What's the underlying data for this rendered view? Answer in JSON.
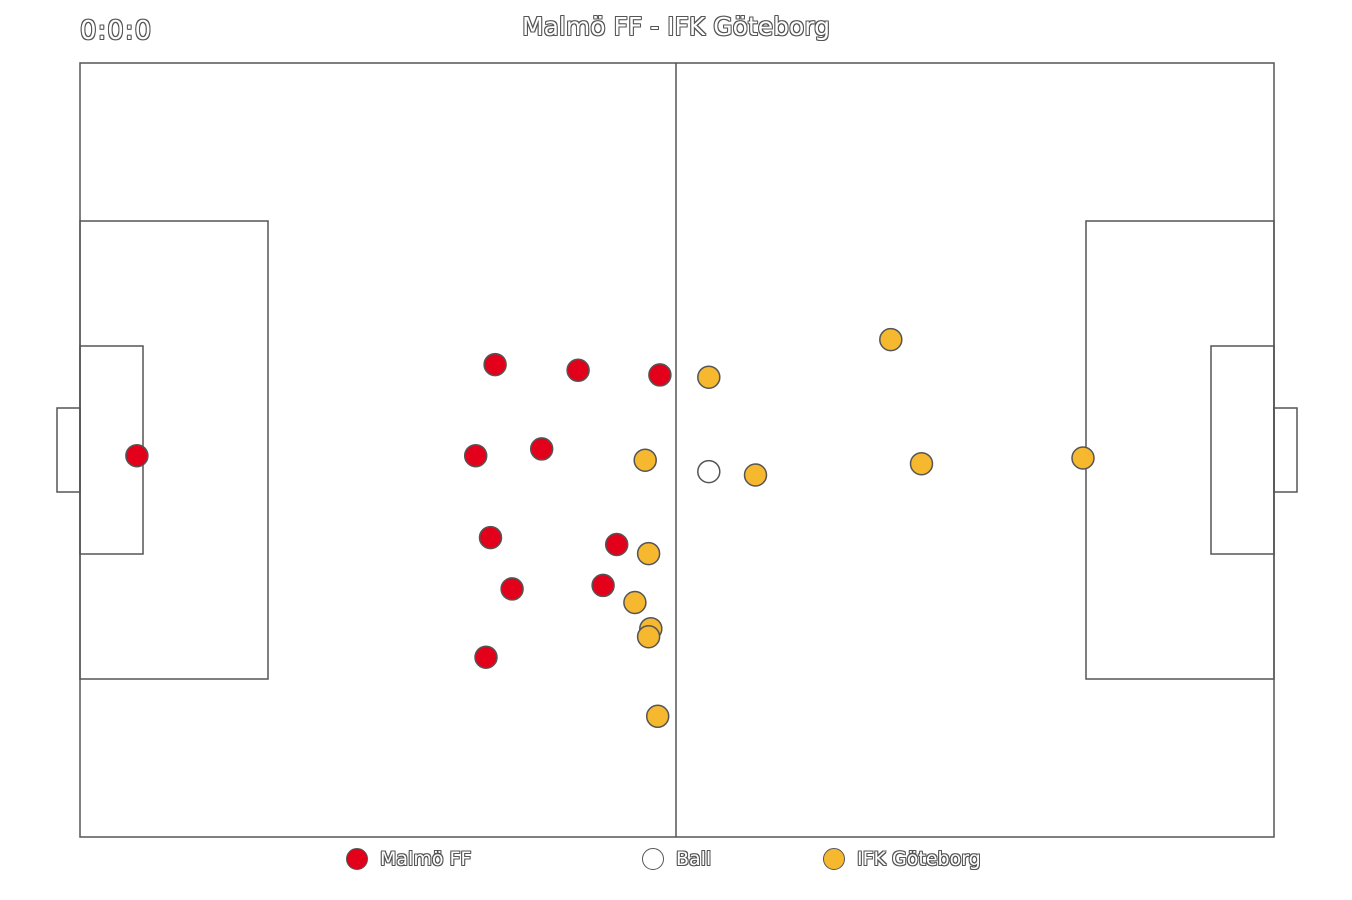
{
  "header": {
    "clock": "0:0:0",
    "title": "Malmö FF - IFK Göteborg"
  },
  "colors": {
    "home": "#e3001b",
    "away": "#f5b82e",
    "ball": "#ffffff",
    "lines": "#555555"
  },
  "teams": {
    "home": {
      "name": "Malmö FF",
      "players": [
        {
          "x": 5.0,
          "y": 34.5
        },
        {
          "x": 36.5,
          "y": 26.5
        },
        {
          "x": 43.8,
          "y": 27.0
        },
        {
          "x": 51.0,
          "y": 27.4
        },
        {
          "x": 34.8,
          "y": 34.5
        },
        {
          "x": 40.6,
          "y": 33.9
        },
        {
          "x": 36.1,
          "y": 41.7
        },
        {
          "x": 47.2,
          "y": 42.3
        },
        {
          "x": 38.0,
          "y": 46.2
        },
        {
          "x": 46.0,
          "y": 45.9
        },
        {
          "x": 35.7,
          "y": 52.2
        }
      ]
    },
    "away": {
      "name": "IFK Göteborg",
      "players": [
        {
          "x": 55.3,
          "y": 27.6
        },
        {
          "x": 71.3,
          "y": 24.3
        },
        {
          "x": 49.7,
          "y": 34.9
        },
        {
          "x": 59.4,
          "y": 36.2
        },
        {
          "x": 74.0,
          "y": 35.2
        },
        {
          "x": 88.2,
          "y": 34.7
        },
        {
          "x": 50.0,
          "y": 43.1
        },
        {
          "x": 48.8,
          "y": 47.4
        },
        {
          "x": 50.2,
          "y": 49.7
        },
        {
          "x": 50.0,
          "y": 50.4
        },
        {
          "x": 50.8,
          "y": 57.4
        }
      ]
    }
  },
  "ball": {
    "label": "Ball",
    "x": 55.3,
    "y": 35.9
  },
  "legend": [
    {
      "label": "Malmö FF",
      "team": "home"
    },
    {
      "label": "Ball",
      "team": "ball"
    },
    {
      "label": "IFK Göteborg",
      "team": "away"
    }
  ]
}
